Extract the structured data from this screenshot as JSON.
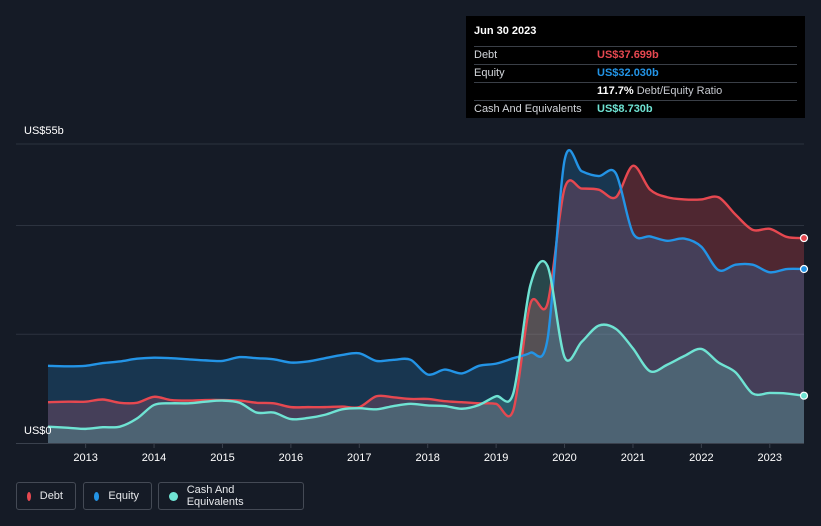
{
  "tooltip": {
    "date": "Jun 30 2023",
    "debt_label": "Debt",
    "debt_value": "US$37.699b",
    "equity_label": "Equity",
    "equity_value": "US$32.030b",
    "ratio_value": "117.7%",
    "ratio_label": "Debt/Equity Ratio",
    "cash_label": "Cash And Equivalents",
    "cash_value": "US$8.730b"
  },
  "colors": {
    "debt": "#e64850",
    "equity": "#2394e6",
    "cash": "#6fe3d3",
    "background": "#151b26"
  },
  "legend": [
    {
      "label": "Debt",
      "color": "#e64850"
    },
    {
      "label": "Equity",
      "color": "#2394e6"
    },
    {
      "label": "Cash And Equivalents",
      "color": "#6fe3d3"
    }
  ],
  "chart_data": {
    "type": "area",
    "y_top_label": "US$55b",
    "y_bottom_label": "US$0",
    "ylim": [
      0,
      55
    ],
    "xlim": [
      2012.45,
      2023.5
    ],
    "x_ticks": [
      2013,
      2014,
      2015,
      2016,
      2017,
      2018,
      2019,
      2020,
      2021,
      2022,
      2023
    ],
    "grid": true,
    "legend_position": "bottom-left",
    "series": [
      {
        "name": "Debt",
        "x": [
          2012.45,
          2012.75,
          2013.0,
          2013.25,
          2013.5,
          2013.75,
          2014.0,
          2014.25,
          2014.5,
          2014.75,
          2015.0,
          2015.25,
          2015.5,
          2015.75,
          2016.0,
          2016.25,
          2016.5,
          2016.75,
          2017.0,
          2017.25,
          2017.5,
          2017.75,
          2018.0,
          2018.25,
          2018.5,
          2018.75,
          2019.0,
          2019.25,
          2019.5,
          2019.75,
          2020.0,
          2020.25,
          2020.5,
          2020.75,
          2021.0,
          2021.25,
          2021.5,
          2021.75,
          2022.0,
          2022.25,
          2022.5,
          2022.75,
          2023.0,
          2023.25,
          2023.5
        ],
        "values": [
          7.5,
          7.6,
          7.6,
          8.0,
          7.4,
          7.4,
          8.5,
          7.9,
          7.8,
          7.9,
          7.9,
          7.8,
          7.4,
          7.3,
          6.6,
          6.6,
          6.6,
          6.7,
          6.6,
          8.6,
          8.4,
          8.1,
          8.1,
          7.7,
          7.5,
          7.3,
          7.2,
          6.0,
          25.6,
          25.6,
          46.8,
          46.8,
          46.6,
          45.2,
          51.0,
          46.6,
          45.2,
          44.8,
          44.8,
          45.2,
          42.0,
          39.2,
          39.4,
          37.9,
          37.7
        ]
      },
      {
        "name": "Equity",
        "x": [
          2012.45,
          2012.75,
          2013.0,
          2013.25,
          2013.5,
          2013.75,
          2014.0,
          2014.25,
          2014.5,
          2014.75,
          2015.0,
          2015.25,
          2015.5,
          2015.75,
          2016.0,
          2016.25,
          2016.5,
          2016.75,
          2017.0,
          2017.25,
          2017.5,
          2017.75,
          2018.0,
          2018.25,
          2018.5,
          2018.75,
          2019.0,
          2019.25,
          2019.5,
          2019.75,
          2020.0,
          2020.25,
          2020.5,
          2020.75,
          2021.0,
          2021.25,
          2021.5,
          2021.75,
          2022.0,
          2022.25,
          2022.5,
          2022.75,
          2023.0,
          2023.25,
          2023.5
        ],
        "values": [
          14.2,
          14.1,
          14.2,
          14.7,
          15.0,
          15.5,
          15.7,
          15.6,
          15.4,
          15.2,
          15.1,
          15.8,
          15.6,
          15.4,
          14.8,
          15.0,
          15.6,
          16.2,
          16.5,
          15.1,
          15.3,
          15.3,
          12.6,
          13.5,
          12.8,
          14.2,
          14.6,
          15.6,
          16.6,
          19.0,
          52.0,
          50.0,
          49.1,
          49.6,
          38.6,
          38.0,
          37.2,
          37.6,
          36.1,
          31.8,
          32.8,
          32.8,
          31.4,
          32.0,
          32.0
        ]
      },
      {
        "name": "Cash And Equivalents",
        "x": [
          2012.45,
          2012.75,
          2013.0,
          2013.25,
          2013.5,
          2013.75,
          2014.0,
          2014.25,
          2014.5,
          2014.75,
          2015.0,
          2015.25,
          2015.5,
          2015.75,
          2016.0,
          2016.25,
          2016.5,
          2016.75,
          2017.0,
          2017.25,
          2017.5,
          2017.75,
          2018.0,
          2018.25,
          2018.5,
          2018.75,
          2019.0,
          2019.25,
          2019.5,
          2019.75,
          2020.0,
          2020.25,
          2020.5,
          2020.75,
          2021.0,
          2021.25,
          2021.5,
          2021.75,
          2022.0,
          2022.25,
          2022.5,
          2022.75,
          2023.0,
          2023.25,
          2023.5
        ],
        "values": [
          3.0,
          2.8,
          2.6,
          2.9,
          3.0,
          4.5,
          7.0,
          7.3,
          7.3,
          7.6,
          7.8,
          7.4,
          5.6,
          5.6,
          4.4,
          4.6,
          5.2,
          6.2,
          6.4,
          6.2,
          6.8,
          7.2,
          6.9,
          6.8,
          6.3,
          7.0,
          8.6,
          9.1,
          29.0,
          32.6,
          15.8,
          18.6,
          21.6,
          21.0,
          17.4,
          13.2,
          14.4,
          16.0,
          17.3,
          14.8,
          13.0,
          9.1,
          9.2,
          9.1,
          8.7
        ]
      }
    ]
  }
}
